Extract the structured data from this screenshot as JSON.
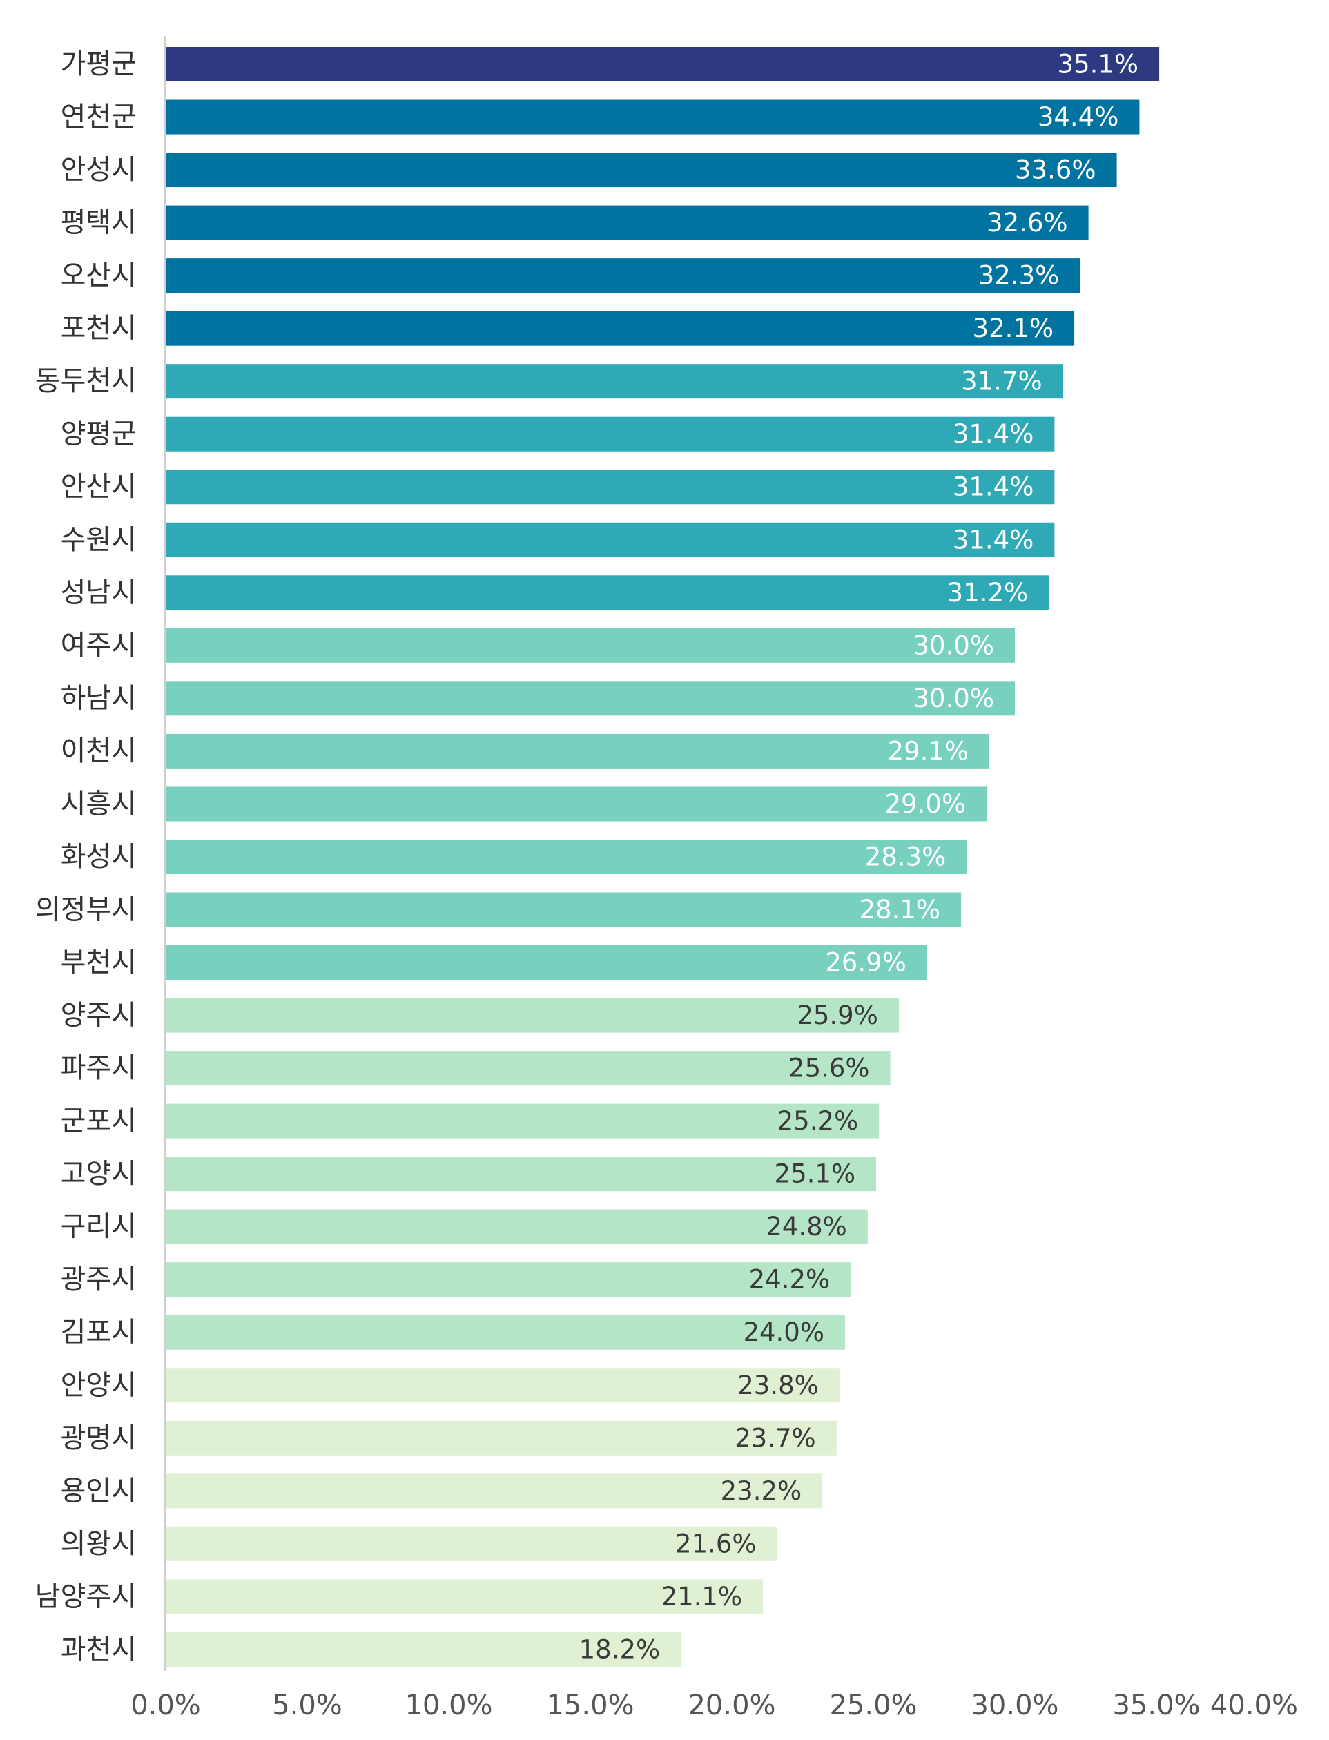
{
  "chart_data": {
    "type": "bar",
    "orientation": "horizontal",
    "categories": [
      "가평군",
      "연천군",
      "안성시",
      "평택시",
      "오산시",
      "포천시",
      "동두천시",
      "양평군",
      "안산시",
      "수원시",
      "성남시",
      "여주시",
      "하남시",
      "이천시",
      "시흥시",
      "화성시",
      "의정부시",
      "부천시",
      "양주시",
      "파주시",
      "군포시",
      "고양시",
      "구리시",
      "광주시",
      "김포시",
      "안양시",
      "광명시",
      "용인시",
      "의왕시",
      "남양주시",
      "과천시"
    ],
    "values": [
      35.1,
      34.4,
      33.6,
      32.6,
      32.3,
      32.1,
      31.7,
      31.4,
      31.4,
      31.4,
      31.2,
      30.0,
      30.0,
      29.1,
      29.0,
      28.3,
      28.1,
      26.9,
      25.9,
      25.6,
      25.2,
      25.1,
      24.8,
      24.2,
      24.0,
      23.8,
      23.7,
      23.2,
      21.6,
      21.1,
      18.2
    ],
    "value_labels": [
      "35.1%",
      "34.4%",
      "33.6%",
      "32.6%",
      "32.3%",
      "32.1%",
      "31.7%",
      "31.4%",
      "31.4%",
      "31.4%",
      "31.2%",
      "30.0%",
      "30.0%",
      "29.1%",
      "29.0%",
      "28.3%",
      "28.1%",
      "26.9%",
      "25.9%",
      "25.6%",
      "25.2%",
      "25.1%",
      "24.8%",
      "24.2%",
      "24.0%",
      "23.8%",
      "23.7%",
      "23.2%",
      "21.6%",
      "21.1%",
      "18.2%"
    ],
    "xlim": [
      0,
      40
    ],
    "x_ticks": [
      "0.0%",
      "5.0%",
      "10.0%",
      "15.0%",
      "20.0%",
      "25.0%",
      "30.0%",
      "35.0%",
      "40.0%"
    ],
    "title": "",
    "xlabel": "",
    "ylabel": "",
    "grid": false,
    "legend": "none",
    "colors": {
      "tier1": "#2d3a82",
      "tier2": "#0073a0",
      "tier3": "#30a9b6",
      "tier4": "#78d0be",
      "tier5": "#b4e5c6",
      "tier6": "#e0f0d3",
      "label_light": "#ffffff",
      "label_dark": "#3a3a3a",
      "axis": "#cfcfcf"
    },
    "bar_tiers": [
      1,
      2,
      2,
      2,
      2,
      2,
      3,
      3,
      3,
      3,
      3,
      4,
      4,
      4,
      4,
      4,
      4,
      4,
      5,
      5,
      5,
      5,
      5,
      5,
      5,
      6,
      6,
      6,
      6,
      6,
      6
    ]
  }
}
